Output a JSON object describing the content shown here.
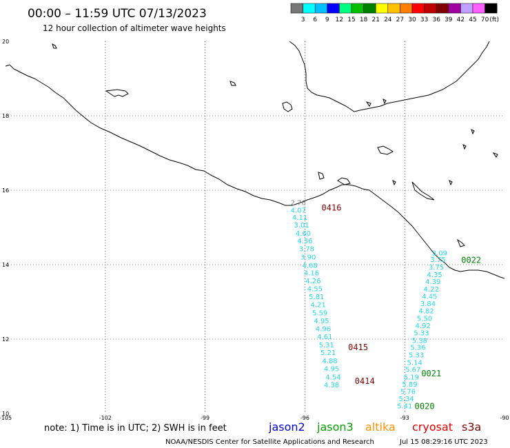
{
  "header": {
    "title": "00:00 – 11:59 UTC 07/13/2023",
    "subtitle": "12 hour collection of altimeter wave heights"
  },
  "color_scale": {
    "colors": [
      "#777777",
      "#00ffff",
      "#00bfff",
      "#0000ff",
      "#00ff80",
      "#00c000",
      "#008000",
      "#ffff00",
      "#ffc000",
      "#ff8000",
      "#ff0000",
      "#c00000",
      "#800000",
      "#a000a0",
      "#c0a0ff",
      "#ff60ff",
      "#000000"
    ],
    "labels": [
      "3",
      "6",
      "9",
      "12",
      "15",
      "18",
      "21",
      "24",
      "27",
      "30",
      "33",
      "36",
      "39",
      "42",
      "45",
      "70"
    ],
    "unit": "(ft)"
  },
  "axes": {
    "lon_ticks": [
      "-105",
      "-102",
      "-99",
      "-96",
      "-93",
      "-90"
    ],
    "lat_ticks": [
      "10",
      "12",
      "14",
      "16",
      "18",
      "20"
    ]
  },
  "map": {
    "lon_range": [
      -105,
      -90
    ],
    "lat_range": [
      10,
      20
    ],
    "coast_color": "#000000",
    "grid": "dotted"
  },
  "track1": {
    "color": "#22d8e8",
    "points": [
      {
        "lon": -96.2,
        "lat": 15.6,
        "v": "2.76",
        "c": "#888888"
      },
      {
        "lon": -96.2,
        "lat": 15.4,
        "v": "4.07"
      },
      {
        "lon": -96.15,
        "lat": 15.2,
        "v": "4.11"
      },
      {
        "lon": -96.1,
        "lat": 15.0,
        "v": "3.01"
      },
      {
        "lon": -96.05,
        "lat": 14.78,
        "v": "4.60"
      },
      {
        "lon": -96.0,
        "lat": 14.57,
        "v": "4.36"
      },
      {
        "lon": -95.95,
        "lat": 14.36,
        "v": "3.78"
      },
      {
        "lon": -95.9,
        "lat": 14.14,
        "v": "3.90"
      },
      {
        "lon": -95.85,
        "lat": 13.92,
        "v": "4.68"
      },
      {
        "lon": -95.8,
        "lat": 13.71,
        "v": "4.16"
      },
      {
        "lon": -95.75,
        "lat": 13.5,
        "v": "4.26"
      },
      {
        "lon": -95.7,
        "lat": 13.29,
        "v": "4.55"
      },
      {
        "lon": -95.65,
        "lat": 13.07,
        "v": "5.81"
      },
      {
        "lon": -95.6,
        "lat": 12.86,
        "v": "4.21"
      },
      {
        "lon": -95.55,
        "lat": 12.64,
        "v": "5.59"
      },
      {
        "lon": -95.5,
        "lat": 12.43,
        "v": "4.95"
      },
      {
        "lon": -95.45,
        "lat": 12.21,
        "v": "4.96"
      },
      {
        "lon": -95.4,
        "lat": 12.0,
        "v": "4.61"
      },
      {
        "lon": -95.35,
        "lat": 11.78,
        "v": "5.31"
      },
      {
        "lon": -95.3,
        "lat": 11.57,
        "v": "5.21"
      },
      {
        "lon": -95.25,
        "lat": 11.35,
        "v": "4.88"
      },
      {
        "lon": -95.2,
        "lat": 11.14,
        "v": "4.95"
      },
      {
        "lon": -95.15,
        "lat": 10.92,
        "v": "4.54"
      },
      {
        "lon": -95.2,
        "lat": 10.7,
        "v": "4.38"
      }
    ],
    "time_labels": [
      {
        "lon": -95.5,
        "lat": 15.45,
        "text": "0416",
        "c": "#800000"
      },
      {
        "lon": -94.7,
        "lat": 11.7,
        "text": "0415",
        "c": "#800000"
      },
      {
        "lon": -94.5,
        "lat": 10.8,
        "text": "0414",
        "c": "#800000"
      }
    ]
  },
  "track2": {
    "points": [
      {
        "lon": -91.95,
        "lat": 14.25,
        "v": "3.09"
      },
      {
        "lon": -92.0,
        "lat": 14.07,
        "v": "3.75"
      },
      {
        "lon": -92.05,
        "lat": 13.87,
        "v": "3.75"
      },
      {
        "lon": -92.1,
        "lat": 13.67,
        "v": "4.35"
      },
      {
        "lon": -92.15,
        "lat": 13.48,
        "v": "4.39"
      },
      {
        "lon": -92.2,
        "lat": 13.28,
        "v": "4.22"
      },
      {
        "lon": -92.25,
        "lat": 13.08,
        "v": "4.45"
      },
      {
        "lon": -92.3,
        "lat": 12.89,
        "v": "3.84"
      },
      {
        "lon": -92.35,
        "lat": 12.69,
        "v": "4.82"
      },
      {
        "lon": -92.4,
        "lat": 12.49,
        "v": "5.50"
      },
      {
        "lon": -92.45,
        "lat": 12.3,
        "v": "4.92"
      },
      {
        "lon": -92.5,
        "lat": 12.1,
        "v": "5.33"
      },
      {
        "lon": -92.55,
        "lat": 11.9,
        "v": "5.38"
      },
      {
        "lon": -92.6,
        "lat": 11.71,
        "v": "5.36"
      },
      {
        "lon": -92.65,
        "lat": 11.51,
        "v": "5.33"
      },
      {
        "lon": -92.7,
        "lat": 11.31,
        "v": "5.14"
      },
      {
        "lon": -92.75,
        "lat": 11.12,
        "v": "5.67"
      },
      {
        "lon": -92.8,
        "lat": 10.92,
        "v": "5.19"
      },
      {
        "lon": -92.85,
        "lat": 10.72,
        "v": "5.89"
      },
      {
        "lon": -92.9,
        "lat": 10.53,
        "v": "5.76"
      },
      {
        "lon": -92.95,
        "lat": 10.33,
        "v": "5.34"
      },
      {
        "lon": -93.0,
        "lat": 10.14,
        "v": "5.41"
      }
    ],
    "time_labels": [
      {
        "lon": -91.3,
        "lat": 14.05,
        "text": "0022",
        "c": "#008000"
      },
      {
        "lon": -92.5,
        "lat": 11.0,
        "text": "0021",
        "c": "#008000"
      },
      {
        "lon": -92.7,
        "lat": 10.12,
        "text": "0020",
        "c": "#008000"
      }
    ]
  },
  "legend": {
    "note": "note: 1) Time is in UTC; 2) SWH is in feet",
    "satellites": [
      {
        "name": "jason2",
        "color": "#0000d0"
      },
      {
        "name": "jason3",
        "color": "#00a000"
      },
      {
        "name": "altika",
        "color": "#ff9000"
      },
      {
        "name": "cryosat",
        "color": "#e00000"
      },
      {
        "name": "s3a",
        "color": "#800000"
      }
    ]
  },
  "footer": {
    "credit": "NOAA/NESDIS Center for Satellite Applications and Research",
    "timestamp": "Jul 15 08:29:16 UTC 2023"
  }
}
